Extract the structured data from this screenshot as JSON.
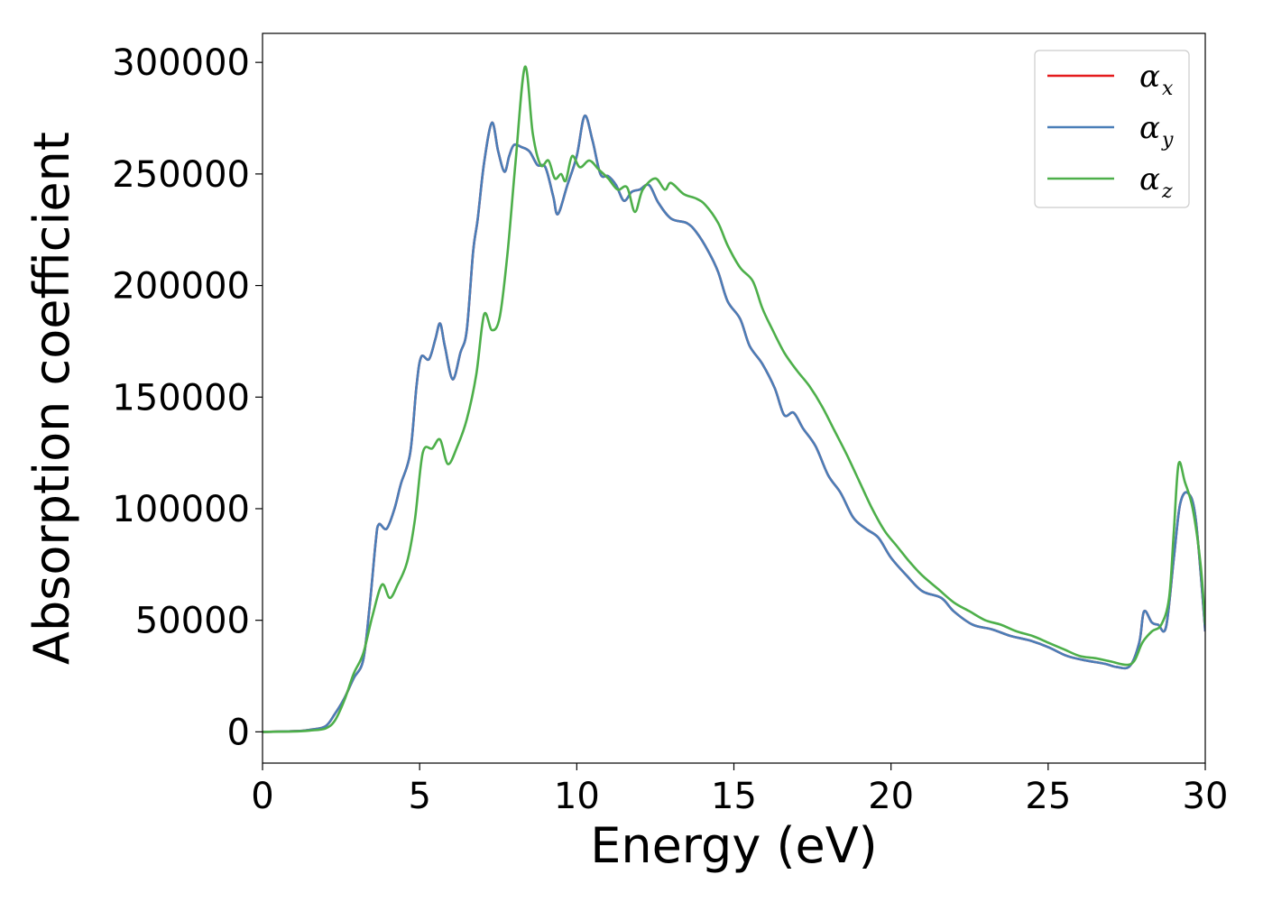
{
  "chart_data": {
    "type": "line",
    "xlabel": "Energy (eV)",
    "ylabel": "Absorption coefficient",
    "xlim": [
      0,
      30
    ],
    "ylim": [
      -14000,
      313000
    ],
    "xticks": [
      0,
      5,
      10,
      15,
      20,
      25,
      30
    ],
    "xtick_labels": [
      "0",
      "5",
      "10",
      "15",
      "20",
      "25",
      "30"
    ],
    "yticks": [
      0,
      50000,
      100000,
      150000,
      200000,
      250000,
      300000
    ],
    "ytick_labels": [
      "0",
      "50000",
      "100000",
      "150000",
      "200000",
      "250000",
      "300000"
    ],
    "grid": false,
    "legend_position": "top-right",
    "series": [
      {
        "name": "α",
        "subscript": "x",
        "color": "#e41a1c",
        "points": [
          [
            0,
            0
          ],
          [
            1,
            300
          ],
          [
            1.5,
            900
          ],
          [
            2,
            2500
          ],
          [
            2.3,
            8000
          ],
          [
            2.6,
            15000
          ],
          [
            2.9,
            24000
          ],
          [
            3.2,
            32000
          ],
          [
            3.4,
            55000
          ],
          [
            3.6,
            85000
          ],
          [
            3.7,
            93000
          ],
          [
            3.95,
            91000
          ],
          [
            4.2,
            100000
          ],
          [
            4.4,
            111000
          ],
          [
            4.7,
            125000
          ],
          [
            4.9,
            155000
          ],
          [
            5.05,
            168000
          ],
          [
            5.3,
            167000
          ],
          [
            5.5,
            176000
          ],
          [
            5.65,
            183000
          ],
          [
            5.8,
            173000
          ],
          [
            6.05,
            158000
          ],
          [
            6.3,
            170000
          ],
          [
            6.5,
            180000
          ],
          [
            6.7,
            215000
          ],
          [
            6.85,
            230000
          ],
          [
            7.05,
            255000
          ],
          [
            7.3,
            273000
          ],
          [
            7.5,
            260000
          ],
          [
            7.7,
            251000
          ],
          [
            7.85,
            258000
          ],
          [
            8.0,
            263000
          ],
          [
            8.25,
            262000
          ],
          [
            8.5,
            260000
          ],
          [
            8.75,
            254000
          ],
          [
            9.0,
            253000
          ],
          [
            9.25,
            240000
          ],
          [
            9.4,
            232000
          ],
          [
            9.7,
            245000
          ],
          [
            10.0,
            258000
          ],
          [
            10.25,
            276000
          ],
          [
            10.5,
            265000
          ],
          [
            10.75,
            250000
          ],
          [
            11.0,
            249000
          ],
          [
            11.25,
            245000
          ],
          [
            11.5,
            238000
          ],
          [
            11.75,
            242000
          ],
          [
            12.0,
            243000
          ],
          [
            12.3,
            245000
          ],
          [
            12.6,
            237000
          ],
          [
            13.0,
            230000
          ],
          [
            13.5,
            228000
          ],
          [
            13.8,
            224000
          ],
          [
            14.2,
            215000
          ],
          [
            14.5,
            206000
          ],
          [
            14.8,
            193000
          ],
          [
            15.2,
            185000
          ],
          [
            15.5,
            173000
          ],
          [
            15.9,
            165000
          ],
          [
            16.3,
            154000
          ],
          [
            16.6,
            142000
          ],
          [
            16.9,
            143000
          ],
          [
            17.2,
            136000
          ],
          [
            17.6,
            128000
          ],
          [
            18.0,
            115000
          ],
          [
            18.4,
            107000
          ],
          [
            18.8,
            96000
          ],
          [
            19.2,
            91000
          ],
          [
            19.6,
            87000
          ],
          [
            20.0,
            78000
          ],
          [
            20.5,
            70000
          ],
          [
            21.0,
            63000
          ],
          [
            21.6,
            60000
          ],
          [
            22.0,
            54000
          ],
          [
            22.6,
            48000
          ],
          [
            23.2,
            46000
          ],
          [
            23.8,
            43000
          ],
          [
            24.4,
            41000
          ],
          [
            25.0,
            38000
          ],
          [
            25.6,
            34000
          ],
          [
            26.2,
            32000
          ],
          [
            26.8,
            30500
          ],
          [
            27.2,
            29000
          ],
          [
            27.6,
            29500
          ],
          [
            27.9,
            40000
          ],
          [
            28.05,
            54000
          ],
          [
            28.3,
            49000
          ],
          [
            28.5,
            48000
          ],
          [
            28.75,
            47000
          ],
          [
            29.0,
            78000
          ],
          [
            29.2,
            102000
          ],
          [
            29.45,
            107000
          ],
          [
            29.7,
            95000
          ],
          [
            30.0,
            45000
          ]
        ]
      },
      {
        "name": "α",
        "subscript": "y",
        "color": "#4a7eb8",
        "points": [
          [
            0,
            0
          ],
          [
            1,
            300
          ],
          [
            1.5,
            900
          ],
          [
            2,
            2500
          ],
          [
            2.3,
            8000
          ],
          [
            2.6,
            15000
          ],
          [
            2.9,
            24000
          ],
          [
            3.2,
            32000
          ],
          [
            3.4,
            55000
          ],
          [
            3.6,
            85000
          ],
          [
            3.7,
            93000
          ],
          [
            3.95,
            91000
          ],
          [
            4.2,
            100000
          ],
          [
            4.4,
            111000
          ],
          [
            4.7,
            125000
          ],
          [
            4.9,
            155000
          ],
          [
            5.05,
            168000
          ],
          [
            5.3,
            167000
          ],
          [
            5.5,
            176000
          ],
          [
            5.65,
            183000
          ],
          [
            5.8,
            173000
          ],
          [
            6.05,
            158000
          ],
          [
            6.3,
            170000
          ],
          [
            6.5,
            180000
          ],
          [
            6.7,
            215000
          ],
          [
            6.85,
            230000
          ],
          [
            7.05,
            255000
          ],
          [
            7.3,
            273000
          ],
          [
            7.5,
            260000
          ],
          [
            7.7,
            251000
          ],
          [
            7.85,
            258000
          ],
          [
            8.0,
            263000
          ],
          [
            8.25,
            262000
          ],
          [
            8.5,
            260000
          ],
          [
            8.75,
            254000
          ],
          [
            9.0,
            253000
          ],
          [
            9.25,
            240000
          ],
          [
            9.4,
            232000
          ],
          [
            9.7,
            245000
          ],
          [
            10.0,
            258000
          ],
          [
            10.25,
            276000
          ],
          [
            10.5,
            265000
          ],
          [
            10.75,
            250000
          ],
          [
            11.0,
            249000
          ],
          [
            11.25,
            245000
          ],
          [
            11.5,
            238000
          ],
          [
            11.75,
            242000
          ],
          [
            12.0,
            243000
          ],
          [
            12.3,
            245000
          ],
          [
            12.6,
            237000
          ],
          [
            13.0,
            230000
          ],
          [
            13.5,
            228000
          ],
          [
            13.8,
            224000
          ],
          [
            14.2,
            215000
          ],
          [
            14.5,
            206000
          ],
          [
            14.8,
            193000
          ],
          [
            15.2,
            185000
          ],
          [
            15.5,
            173000
          ],
          [
            15.9,
            165000
          ],
          [
            16.3,
            154000
          ],
          [
            16.6,
            142000
          ],
          [
            16.9,
            143000
          ],
          [
            17.2,
            136000
          ],
          [
            17.6,
            128000
          ],
          [
            18.0,
            115000
          ],
          [
            18.4,
            107000
          ],
          [
            18.8,
            96000
          ],
          [
            19.2,
            91000
          ],
          [
            19.6,
            87000
          ],
          [
            20.0,
            78000
          ],
          [
            20.5,
            70000
          ],
          [
            21.0,
            63000
          ],
          [
            21.6,
            60000
          ],
          [
            22.0,
            54000
          ],
          [
            22.6,
            48000
          ],
          [
            23.2,
            46000
          ],
          [
            23.8,
            43000
          ],
          [
            24.4,
            41000
          ],
          [
            25.0,
            38000
          ],
          [
            25.6,
            34000
          ],
          [
            26.2,
            32000
          ],
          [
            26.8,
            30500
          ],
          [
            27.2,
            29000
          ],
          [
            27.6,
            29500
          ],
          [
            27.9,
            40000
          ],
          [
            28.05,
            54000
          ],
          [
            28.3,
            49000
          ],
          [
            28.5,
            48000
          ],
          [
            28.75,
            47000
          ],
          [
            29.0,
            78000
          ],
          [
            29.2,
            102000
          ],
          [
            29.45,
            107000
          ],
          [
            29.7,
            95000
          ],
          [
            30.0,
            45000
          ]
        ]
      },
      {
        "name": "α",
        "subscript": "z",
        "color": "#4daf4a",
        "points": [
          [
            0,
            0
          ],
          [
            1,
            200
          ],
          [
            1.5,
            600
          ],
          [
            2,
            1500
          ],
          [
            2.3,
            5000
          ],
          [
            2.6,
            14000
          ],
          [
            2.9,
            26000
          ],
          [
            3.2,
            35000
          ],
          [
            3.5,
            52000
          ],
          [
            3.8,
            66000
          ],
          [
            4.05,
            60000
          ],
          [
            4.3,
            66000
          ],
          [
            4.6,
            76000
          ],
          [
            4.85,
            95000
          ],
          [
            5.1,
            125000
          ],
          [
            5.4,
            127000
          ],
          [
            5.65,
            131000
          ],
          [
            5.9,
            120000
          ],
          [
            6.2,
            128000
          ],
          [
            6.5,
            140000
          ],
          [
            6.8,
            160000
          ],
          [
            7.05,
            187000
          ],
          [
            7.3,
            180000
          ],
          [
            7.55,
            186000
          ],
          [
            7.8,
            215000
          ],
          [
            8.05,
            255000
          ],
          [
            8.35,
            298000
          ],
          [
            8.6,
            268000
          ],
          [
            8.85,
            254000
          ],
          [
            9.1,
            256000
          ],
          [
            9.3,
            248000
          ],
          [
            9.5,
            250000
          ],
          [
            9.65,
            247000
          ],
          [
            9.85,
            258000
          ],
          [
            10.1,
            253000
          ],
          [
            10.4,
            256000
          ],
          [
            10.7,
            252000
          ],
          [
            11.0,
            248000
          ],
          [
            11.3,
            243000
          ],
          [
            11.6,
            244000
          ],
          [
            11.85,
            233000
          ],
          [
            12.1,
            243000
          ],
          [
            12.5,
            248000
          ],
          [
            12.8,
            243000
          ],
          [
            13.0,
            246000
          ],
          [
            13.4,
            241000
          ],
          [
            13.8,
            239000
          ],
          [
            14.1,
            236000
          ],
          [
            14.5,
            228000
          ],
          [
            14.8,
            218000
          ],
          [
            15.2,
            208000
          ],
          [
            15.6,
            202000
          ],
          [
            15.9,
            190000
          ],
          [
            16.2,
            181000
          ],
          [
            16.6,
            170000
          ],
          [
            17.0,
            162000
          ],
          [
            17.4,
            155000
          ],
          [
            17.8,
            146000
          ],
          [
            18.2,
            135000
          ],
          [
            18.6,
            124000
          ],
          [
            19.0,
            112000
          ],
          [
            19.4,
            100000
          ],
          [
            19.8,
            90000
          ],
          [
            20.2,
            83000
          ],
          [
            20.6,
            76000
          ],
          [
            21.0,
            70000
          ],
          [
            21.5,
            64000
          ],
          [
            22.0,
            58000
          ],
          [
            22.5,
            54000
          ],
          [
            23.0,
            50000
          ],
          [
            23.5,
            48000
          ],
          [
            24.0,
            45000
          ],
          [
            24.5,
            43000
          ],
          [
            25.0,
            40000
          ],
          [
            25.5,
            37000
          ],
          [
            26.0,
            34000
          ],
          [
            26.5,
            33000
          ],
          [
            27.0,
            31500
          ],
          [
            27.5,
            30000
          ],
          [
            27.75,
            32000
          ],
          [
            28.0,
            40000
          ],
          [
            28.3,
            45000
          ],
          [
            28.6,
            48000
          ],
          [
            28.85,
            60000
          ],
          [
            29.0,
            90000
          ],
          [
            29.15,
            120000
          ],
          [
            29.35,
            112000
          ],
          [
            29.6,
            100000
          ],
          [
            29.85,
            75000
          ],
          [
            30.0,
            48000
          ]
        ]
      }
    ]
  }
}
